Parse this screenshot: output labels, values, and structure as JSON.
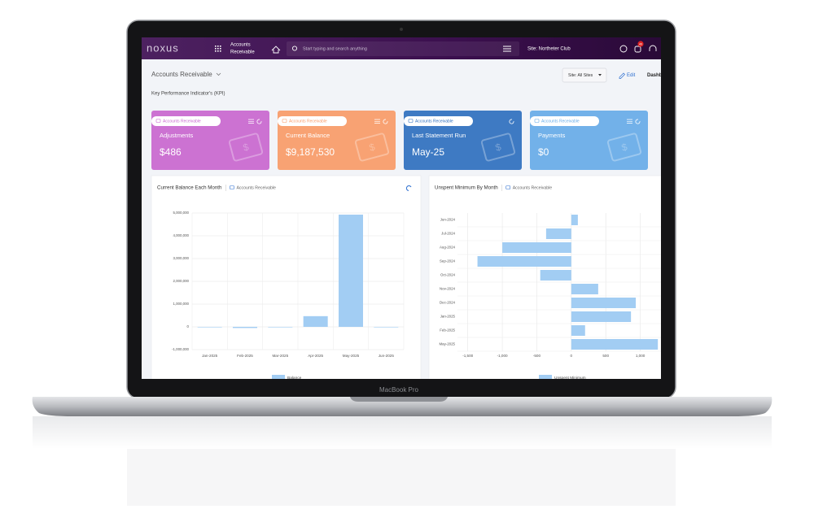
{
  "header": {
    "logo": "noxus",
    "module_line1": "Accounts",
    "module_line2": "Receivable",
    "search_placeholder": "Start typing and search anything",
    "site": "Site: Northeter Club",
    "notifications": "49"
  },
  "laptop_label": "MacBook Pro",
  "page": {
    "title": "Accounts Receivable",
    "section": "Key Performance Indicator's (KPI)",
    "site_filter": "Site: All Sites",
    "edit": "Edit",
    "dashboard": "Dashboard"
  },
  "kpis": [
    {
      "tag": "Accounts Receivable",
      "label": "Adjustments",
      "value": "$486",
      "color": "#c867cf"
    },
    {
      "tag": "Accounts Receivable",
      "label": "Current Balance",
      "value": "$9,187,530",
      "color": "#f89b68"
    },
    {
      "tag": "Accounts Receivable",
      "label": "Last Statement Run",
      "value": "May-25",
      "color": "#2e6fbe"
    },
    {
      "tag": "Accounts Receivable",
      "label": "Payments",
      "value": "$0",
      "color": "#66abe8"
    }
  ],
  "chart_data": [
    {
      "type": "bar",
      "title": "Current Balance Each Month",
      "source": "Accounts Receivable",
      "categories": [
        "Jan-2025",
        "Feb-2025",
        "Mar-2025",
        "Apr-2025",
        "May-2025",
        "Jun-2025"
      ],
      "series": [
        {
          "name": "Balance",
          "color": "#a2cdf3",
          "values": [
            0,
            -50000,
            -20000,
            470000,
            4930000,
            0
          ]
        }
      ],
      "ylim": [
        -1000000,
        5000000
      ],
      "yticks": [
        {
          "value": -1000000,
          "label": "-1,000,000"
        },
        0,
        {
          "value": 1000000,
          "label": "1,000,000"
        },
        {
          "value": 2000000,
          "label": "2,000,000"
        },
        {
          "value": 3000000,
          "label": "3,000,000"
        },
        {
          "value": 4000000,
          "label": "4,000,000"
        },
        {
          "value": 5000000,
          "label": "5,000,000"
        }
      ],
      "grid": true
    },
    {
      "type": "barh",
      "title": "Unspent Minimum By Month",
      "source": "Accounts Receivable",
      "categories": [
        "Jun-2024",
        "Jul-2024",
        "Aug-2024",
        "Sep-2024",
        "Oct-2024",
        "Nov-2024",
        "Dec-2024",
        "Jan-2025",
        "Feb-2025",
        "May-2025"
      ],
      "series": [
        {
          "name": "Unspent Minimum",
          "color": "#a2cdf3",
          "values": [
            95,
            -365,
            -1000,
            -1360,
            -450,
            390,
            935,
            865,
            200,
            1255
          ]
        }
      ],
      "xlim": [
        -1650,
        1300
      ],
      "xticks": [
        {
          "value": -1500,
          "label": "-1,500"
        },
        {
          "value": -1000,
          "label": "-1,000"
        },
        -500,
        0,
        500,
        {
          "value": 1000,
          "label": "1,000"
        }
      ],
      "grid": true
    }
  ]
}
